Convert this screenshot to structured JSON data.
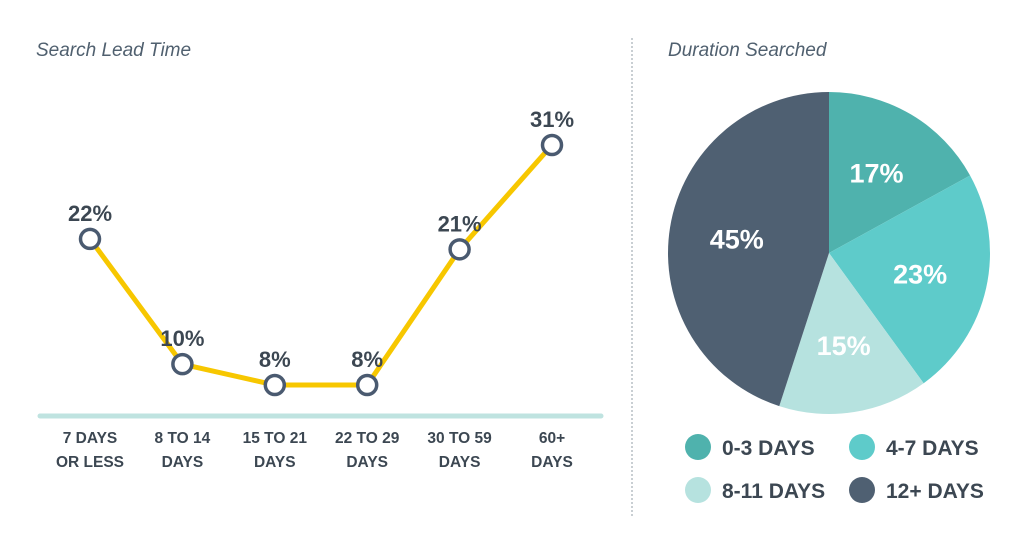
{
  "chart_data": [
    {
      "type": "line",
      "title": "Search Lead Time",
      "categories": [
        "7 DAYS|OR LESS",
        "8 TO 14|DAYS",
        "15 TO 21|DAYS",
        "22 TO 29|DAYS",
        "30 TO 59|DAYS",
        "60+|DAYS"
      ],
      "values": [
        22,
        10,
        8,
        8,
        21,
        31
      ],
      "value_labels": [
        "22%",
        "10%",
        "8%",
        "8%",
        "21%",
        "31%"
      ],
      "xlabel": "",
      "ylabel": "",
      "ylim": [
        0,
        31
      ],
      "grid": false,
      "colors": {
        "line": "#f7c700",
        "marker_stroke": "#4a5a70",
        "marker_fill": "#ffffff",
        "baseline": "#bfe3e0"
      }
    },
    {
      "type": "pie",
      "title": "Duration Searched",
      "categories": [
        "0-3 DAYS",
        "4-7 DAYS",
        "8-11 DAYS",
        "12+ DAYS"
      ],
      "values": [
        17,
        23,
        15,
        45
      ],
      "value_labels": [
        "17%",
        "23%",
        "15%",
        "45%"
      ],
      "colors": [
        "#4fb2ad",
        "#5ecbca",
        "#b6e2df",
        "#4f6072"
      ],
      "legend_position": "bottom"
    }
  ]
}
